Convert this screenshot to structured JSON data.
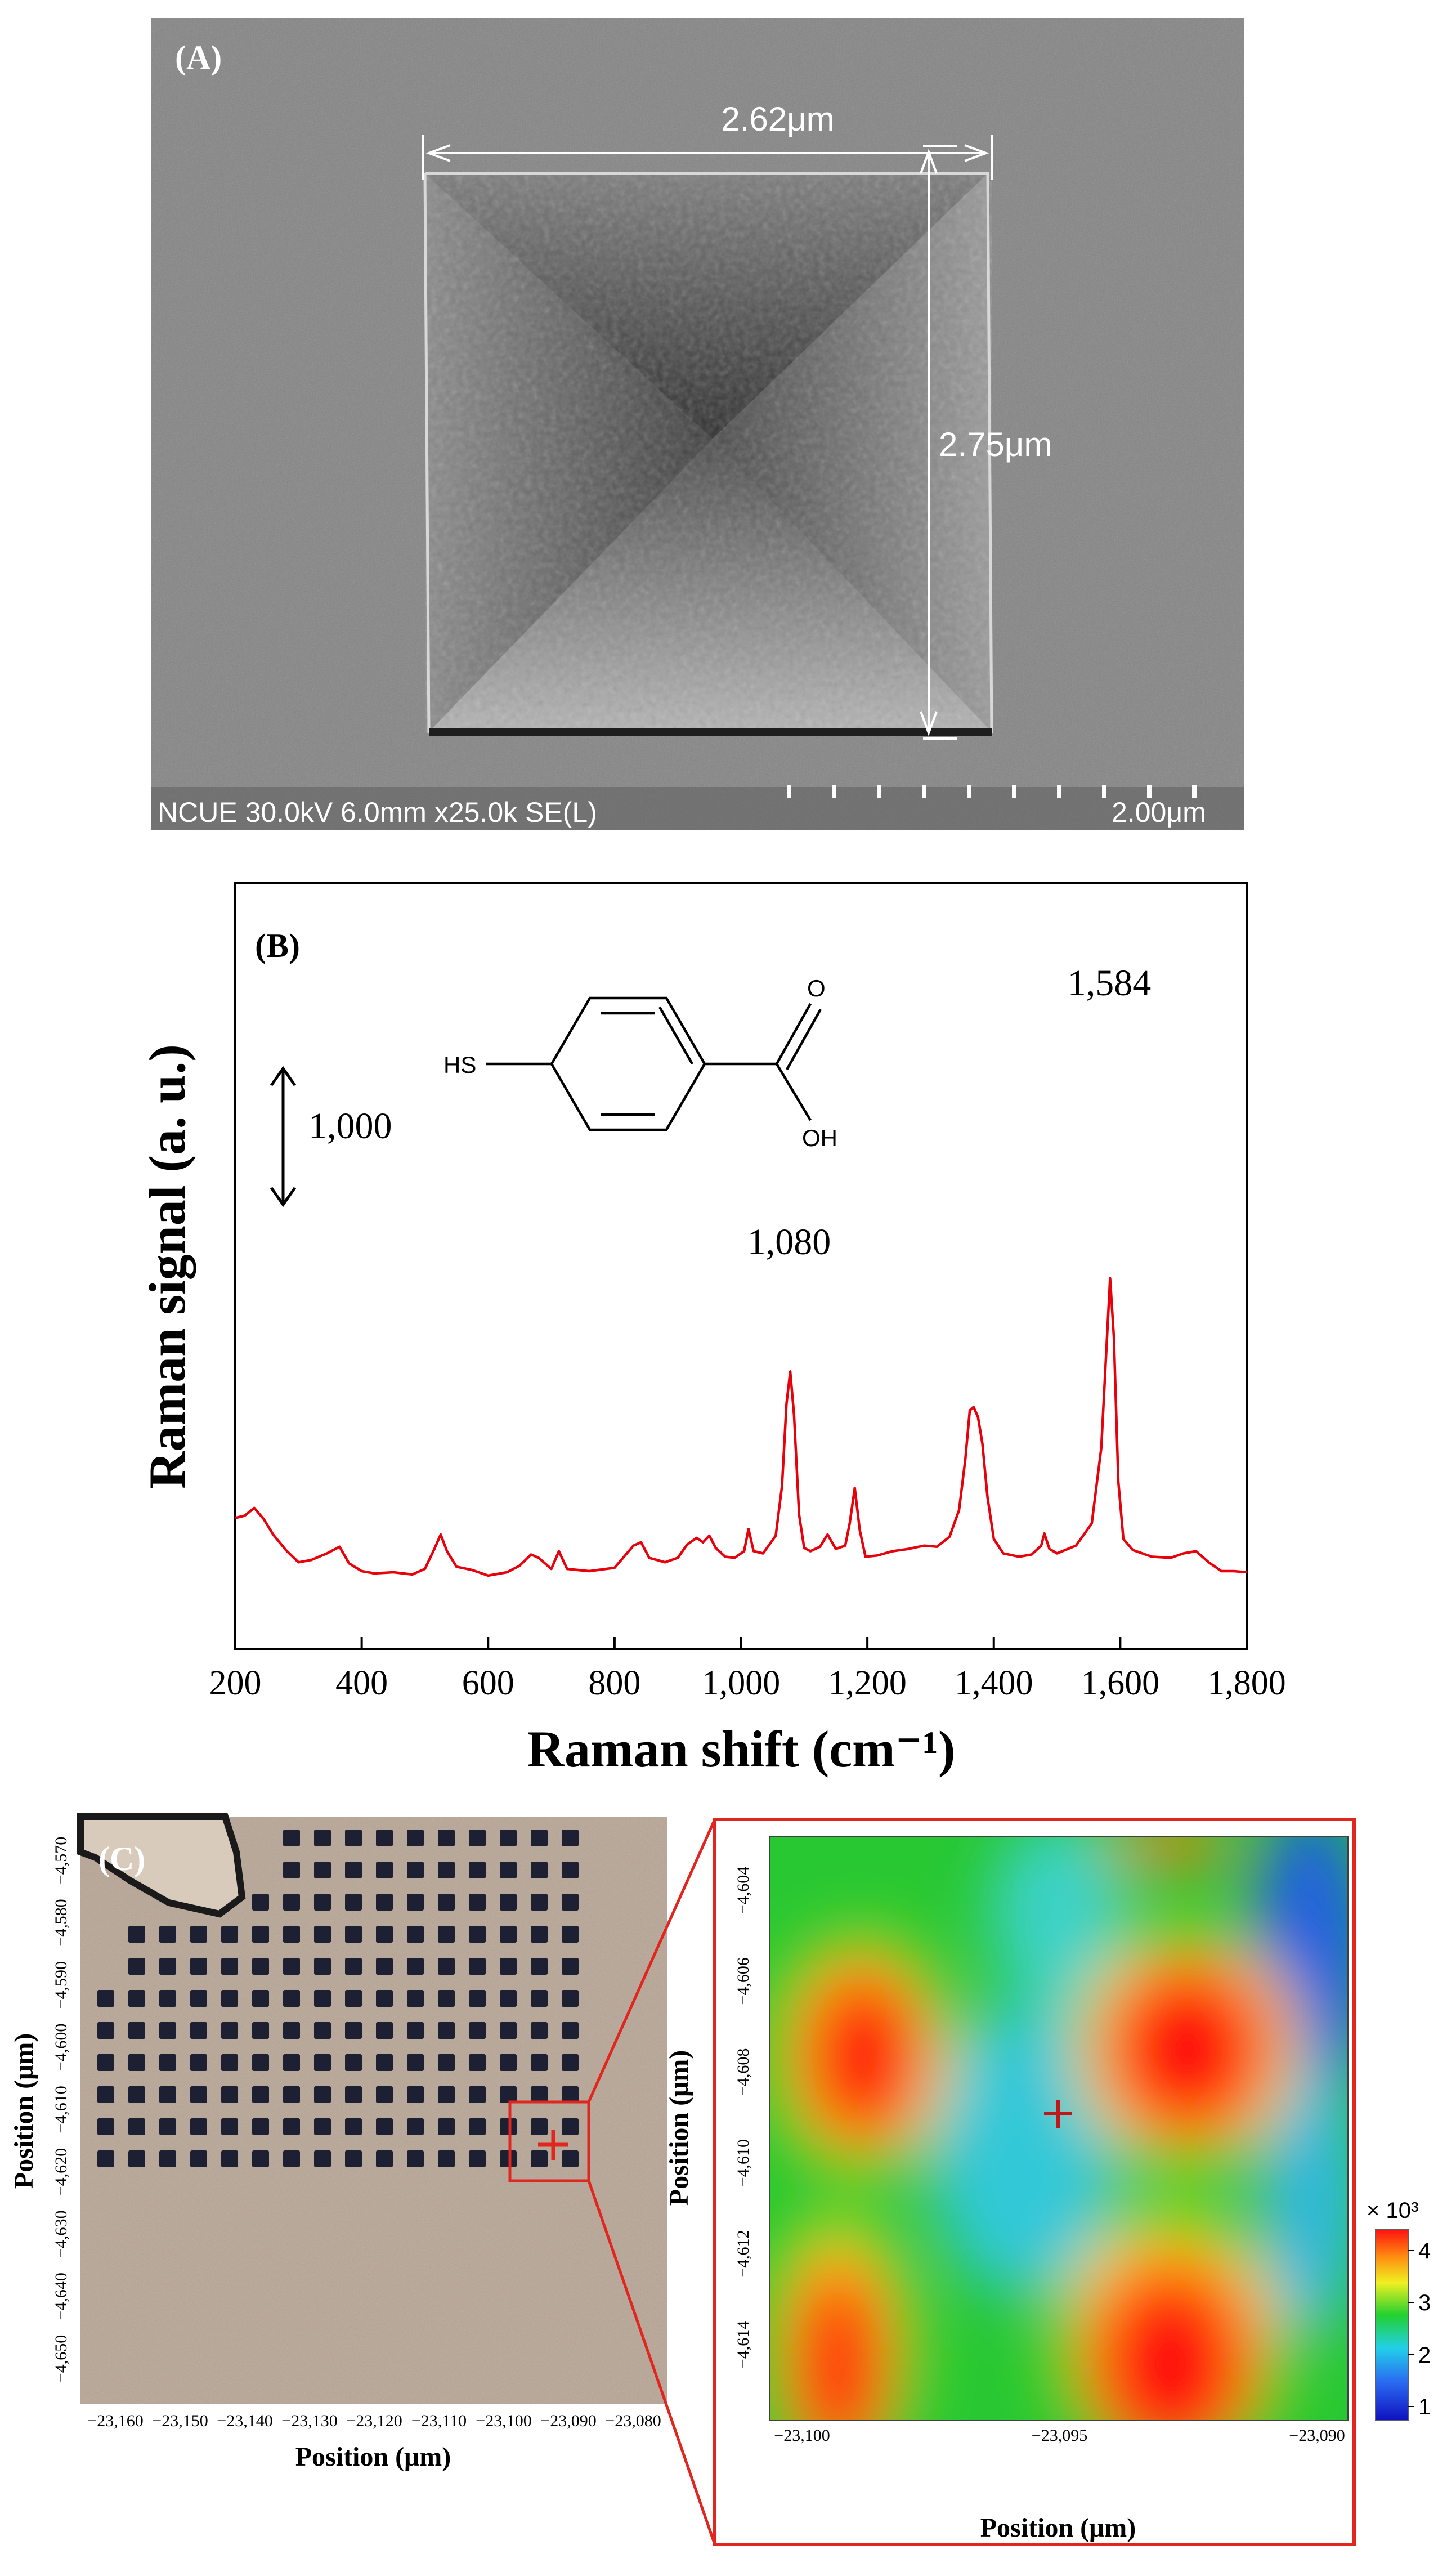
{
  "panel_a": {
    "label": "(A)",
    "dim_horizontal": "2.62μm",
    "dim_vertical": "2.75μm",
    "sem_info": "NCUE 30.0kV 6.0mm x25.0k SE(L)",
    "scale_bar": "2.00μm"
  },
  "panel_b": {
    "label": "(B)",
    "scale_arrow_label": "1,000",
    "molecule_labels": {
      "sh": "HS",
      "o": "O",
      "oh": "OH"
    },
    "peak_labels": [
      "1,080",
      "1,584"
    ]
  },
  "panel_c": {
    "label": "(C)",
    "left_y_ticks": [
      "-4,570",
      "-4,580",
      "-4,590",
      "-4,600",
      "-4,610",
      "-4,620",
      "-4,630",
      "-4,640",
      "-4,650"
    ],
    "left_x_ticks": [
      "-23,160",
      "-23,150",
      "-23,140",
      "-23,130",
      "-23,120",
      "-23,110",
      "-23,100",
      "-23,090",
      "-23,080"
    ],
    "right_y_ticks": [
      "-4,604",
      "-4,606",
      "-4,608",
      "-4,610",
      "-4,612",
      "-4,614"
    ],
    "right_x_ticks": [
      "-23,100",
      "-23,095",
      "-23,090"
    ],
    "axis_label": "Position (μm)",
    "colorbar_title": "× 10³",
    "colorbar_ticks": [
      "4",
      "3",
      "2",
      "1"
    ]
  },
  "chart_data": {
    "type": "line",
    "title": "",
    "xlabel": "Raman shift (cm⁻¹)",
    "ylabel": "Raman signal (a. u.)",
    "xlim": [
      200,
      1800
    ],
    "x_ticks": [
      "200",
      "400",
      "600",
      "800",
      "1,000",
      "1,200",
      "1,400",
      "1,600",
      "1,800"
    ],
    "series": [
      {
        "color": "#e8000b",
        "x": [
          200,
          215,
          230,
          245,
          260,
          280,
          300,
          320,
          345,
          365,
          380,
          400,
          420,
          450,
          480,
          500,
          515,
          525,
          535,
          550,
          575,
          600,
          630,
          650,
          668,
          680,
          700,
          712,
          725,
          760,
          800,
          830,
          842,
          855,
          880,
          900,
          915,
          930,
          940,
          950,
          960,
          975,
          990,
          1005,
          1012,
          1020,
          1035,
          1055,
          1065,
          1072,
          1078,
          1084,
          1092,
          1100,
          1110,
          1125,
          1137,
          1150,
          1165,
          1172,
          1180,
          1188,
          1197,
          1215,
          1240,
          1265,
          1290,
          1310,
          1330,
          1345,
          1355,
          1362,
          1368,
          1375,
          1382,
          1390,
          1400,
          1415,
          1440,
          1460,
          1475,
          1480,
          1488,
          1500,
          1530,
          1555,
          1570,
          1578,
          1584,
          1590,
          1597,
          1605,
          1620,
          1650,
          1680,
          1700,
          1720,
          1740,
          1760,
          1780,
          1800
        ],
        "values": [
          2135,
          2145,
          2180,
          2130,
          2060,
          1990,
          1935,
          1945,
          1975,
          2005,
          1930,
          1895,
          1885,
          1890,
          1880,
          1905,
          1995,
          2060,
          1985,
          1915,
          1900,
          1875,
          1890,
          1920,
          1970,
          1955,
          1905,
          1985,
          1905,
          1895,
          1910,
          2010,
          2025,
          1955,
          1935,
          1955,
          2015,
          2045,
          2025,
          2055,
          2000,
          1960,
          1955,
          1985,
          2085,
          1985,
          1975,
          2055,
          2280,
          2650,
          2795,
          2600,
          2150,
          2000,
          1985,
          2005,
          2060,
          1995,
          2010,
          2110,
          2270,
          2080,
          1960,
          1965,
          1985,
          1995,
          2010,
          2005,
          2050,
          2170,
          2400,
          2620,
          2635,
          2590,
          2470,
          2230,
          2040,
          1975,
          1960,
          1970,
          2010,
          2065,
          1995,
          1975,
          2010,
          2110,
          2450,
          2890,
          3215,
          2950,
          2300,
          2040,
          1990,
          1960,
          1955,
          1975,
          1985,
          1935,
          1895,
          1895,
          1890
        ]
      }
    ]
  },
  "colors": {
    "spectrum": "#e8000b",
    "zoom_box": "#e0261e",
    "marker": "#e0261e"
  }
}
